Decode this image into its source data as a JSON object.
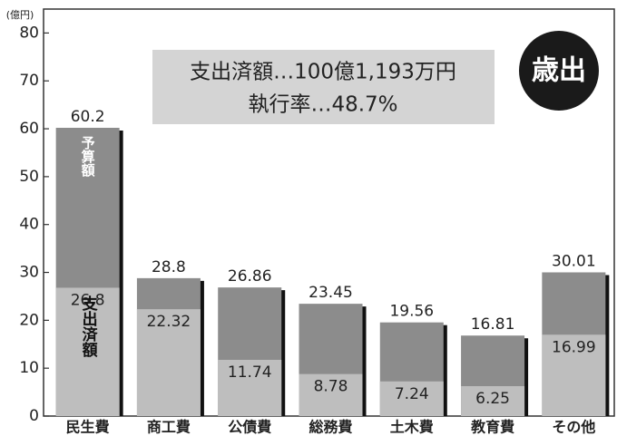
{
  "chart_data": {
    "type": "bar",
    "y_unit": "(億円)",
    "annotations": [
      "支出済額…100億1,193万円",
      "執行率…48.7%",
      "歳出"
    ],
    "categories": [
      "民生費",
      "商工費",
      "公債費",
      "総務費",
      "土木費",
      "教育費",
      "その他"
    ],
    "series": [
      {
        "name": "予算額",
        "color": "#8c8c8c",
        "values": [
          60.2,
          28.8,
          26.86,
          23.45,
          19.56,
          16.81,
          30.01
        ]
      },
      {
        "name": "支出済額",
        "color": "#bebebe",
        "values": [
          26.8,
          22.32,
          11.74,
          8.78,
          7.24,
          6.25,
          16.99
        ]
      }
    ],
    "shadow_color": "#111111",
    "ylim": [
      0,
      85
    ],
    "yticks": [
      0,
      10,
      20,
      30,
      40,
      50,
      60,
      70,
      80
    ]
  }
}
